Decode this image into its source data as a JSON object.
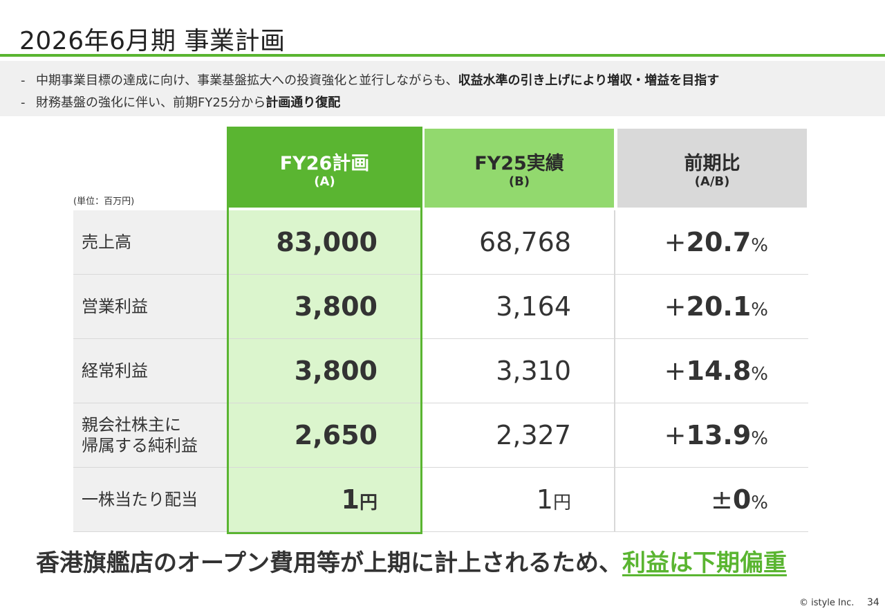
{
  "title": "2026年6月期 事業計画",
  "bullets": [
    {
      "dash": "-",
      "text": "中期事業目標の達成に向け、事業基盤拡大への投資強化と並行しながらも、",
      "bold": "収益水準の引き上げにより増収・増益を目指す"
    },
    {
      "dash": "-",
      "text": "財務基盤の強化に伴い、前期FY25分から",
      "bold": "計画通り復配"
    }
  ],
  "unit_note": "(単位：百万円)",
  "columns": [
    {
      "label": "FY26計画",
      "sub": "(A)"
    },
    {
      "label": "FY25実績",
      "sub": "(B)"
    },
    {
      "label": "前期比",
      "sub": "(A/B)"
    }
  ],
  "rows": [
    {
      "label": "売上高",
      "plan": "83,000",
      "actual": "68,768",
      "sign": "+",
      "change": "20.7",
      "pct": "%"
    },
    {
      "label": "営業利益",
      "plan": "3,800",
      "actual": "3,164",
      "sign": "+",
      "change": "20.1",
      "pct": "%"
    },
    {
      "label": "経常利益",
      "plan": "3,800",
      "actual": "3,310",
      "sign": "+",
      "change": "14.8",
      "pct": "%"
    },
    {
      "label_line1": "親会社株主に",
      "label_line2": "帰属する純利益",
      "plan": "2,650",
      "actual": "2,327",
      "sign": "+",
      "change": "13.9",
      "pct": "%"
    },
    {
      "label": "一株当たり配当",
      "plan": "1",
      "plan_unit": "円",
      "actual": "1",
      "actual_unit": "円",
      "sign": "±",
      "change": "0",
      "pct": "%"
    }
  ],
  "conclusion": {
    "text": "香港旗艦店のオープン費用等が上期に計上されるため、",
    "highlight": "利益は下期偏重"
  },
  "footer": {
    "copyright": "© istyle Inc.",
    "page": "34"
  },
  "colors": {
    "accent_green": "#5ab531",
    "light_green": "#92d96e",
    "pale_green": "#dbf5cd",
    "header_gray": "#d9d9d9",
    "label_gray": "#f0f0f0"
  }
}
